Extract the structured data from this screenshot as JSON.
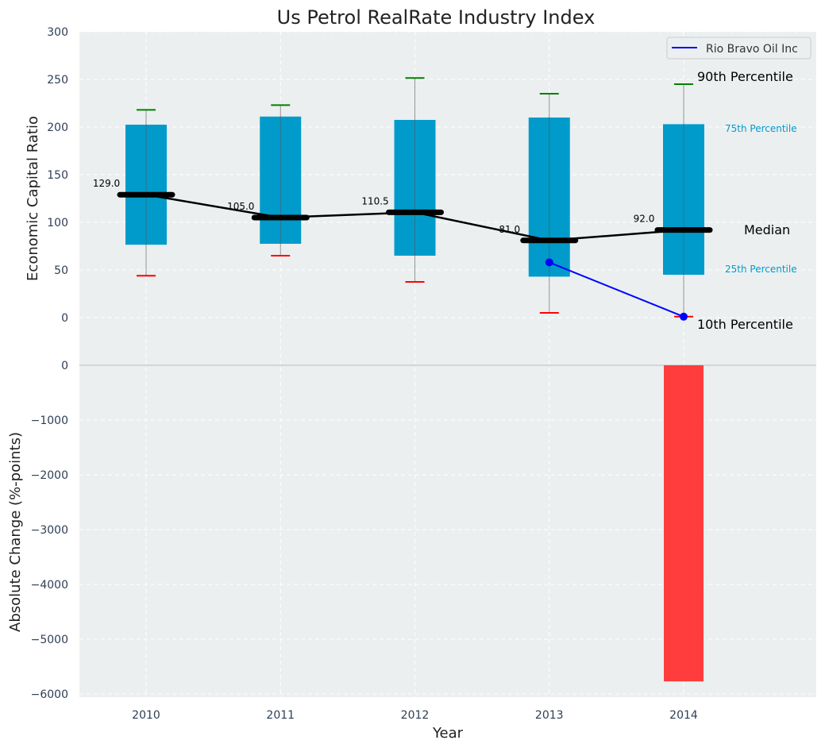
{
  "chart_data": [
    {
      "type": "box",
      "title": "Us Petrol RealRate Industry Index",
      "ylabel": "Economic Capital Ratio",
      "ylim": [
        -50,
        300
      ],
      "yticks": [
        0,
        50,
        100,
        150,
        200,
        250,
        300
      ],
      "categories": [
        2010,
        2011,
        2012,
        2013,
        2014
      ],
      "p10": [
        44,
        65,
        37.5,
        5,
        1
      ],
      "p25": [
        76.5,
        77.5,
        65,
        43,
        45
      ],
      "median": [
        129.0,
        105.0,
        110.5,
        81.0,
        92.0
      ],
      "median_labels": [
        "129.0",
        "105.0",
        "110.5",
        "81.0",
        "92.0"
      ],
      "p75": [
        202.5,
        211,
        207.5,
        210,
        203
      ],
      "p90": [
        218,
        223,
        251.5,
        235,
        245
      ],
      "series": [
        {
          "name": "Rio Bravo Oil Inc",
          "x": [
            2013,
            2014
          ],
          "values": [
            58,
            1
          ],
          "color": "#0000ff"
        }
      ],
      "legend": "top-right",
      "annotations": {
        "p90": "90th Percentile",
        "p75": "75th Percentile",
        "median": "Median",
        "p25": "25th Percentile",
        "p10": "10th Percentile"
      },
      "grid": true
    },
    {
      "type": "bar",
      "xlabel": "Year",
      "ylabel": "Absolute Change (%-points)",
      "ylim": [
        -6050,
        0
      ],
      "yticks": [
        0,
        -1000,
        -2000,
        -3000,
        -4000,
        -5000,
        -6000
      ],
      "ytick_labels": [
        "0",
        "−1000",
        "−2000",
        "−3000",
        "−4000",
        "−5000",
        "−6000"
      ],
      "categories": [
        2010,
        2011,
        2012,
        2013,
        2014
      ],
      "values": [
        null,
        null,
        null,
        null,
        -5770
      ],
      "color": "#ff3d3d",
      "grid": true
    }
  ],
  "colors": {
    "box": "#009bcb",
    "bg": "#ebeff0",
    "p90": "#008000",
    "p10": "#ff0000"
  }
}
